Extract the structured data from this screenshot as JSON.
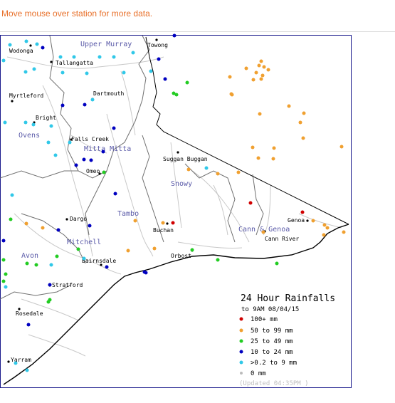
{
  "instruction": "Move mouse over station for more data.",
  "regions": [
    {
      "name": "Upper Murray"
    },
    {
      "name": "Ovens"
    },
    {
      "name": "Mitta Mitta"
    },
    {
      "name": "Snowy"
    },
    {
      "name": "Tambo"
    },
    {
      "name": "Mitchell"
    },
    {
      "name": "Avon"
    },
    {
      "name": "Cann & Genoa"
    }
  ],
  "towns": [
    {
      "name": "Wodonga"
    },
    {
      "name": "Towong"
    },
    {
      "name": "Tallangatta"
    },
    {
      "name": "Myrtleford"
    },
    {
      "name": "Dartmouth"
    },
    {
      "name": "Bright"
    },
    {
      "name": "Falls Creek"
    },
    {
      "name": "Omeo"
    },
    {
      "name": "Suggan Buggan"
    },
    {
      "name": "Dargo"
    },
    {
      "name": "Buchan"
    },
    {
      "name": "Genoa"
    },
    {
      "name": "Cann River"
    },
    {
      "name": "Bairnsdale"
    },
    {
      "name": "Orbost"
    },
    {
      "name": "Stratford"
    },
    {
      "name": "Rosedale"
    },
    {
      "name": "Yarram"
    }
  ],
  "legend": {
    "title": "24 Hour Rainfalls",
    "subtitle": "to 9AM 08/04/15",
    "items": [
      {
        "label": "100+ mm",
        "color": "#d00000"
      },
      {
        "label": "50  to 99 mm",
        "color": "#f0a030"
      },
      {
        "label": "25  to 49 mm",
        "color": "#22cc22"
      },
      {
        "label": "10  to 24 mm",
        "color": "#0000c0"
      },
      {
        "label": ">0.2 to 9 mm",
        "color": "#30c8e8"
      },
      {
        "label": "0 mm",
        "color": "#bbbbbb"
      }
    ],
    "updated": "(Updated 04:35PM  )"
  },
  "stations": [
    {
      "cat": "cyan",
      "n": 30
    },
    {
      "cat": "blue",
      "n": 20
    },
    {
      "cat": "green",
      "n": 17
    },
    {
      "cat": "orange",
      "n": 37
    },
    {
      "cat": "red",
      "n": 3
    }
  ]
}
